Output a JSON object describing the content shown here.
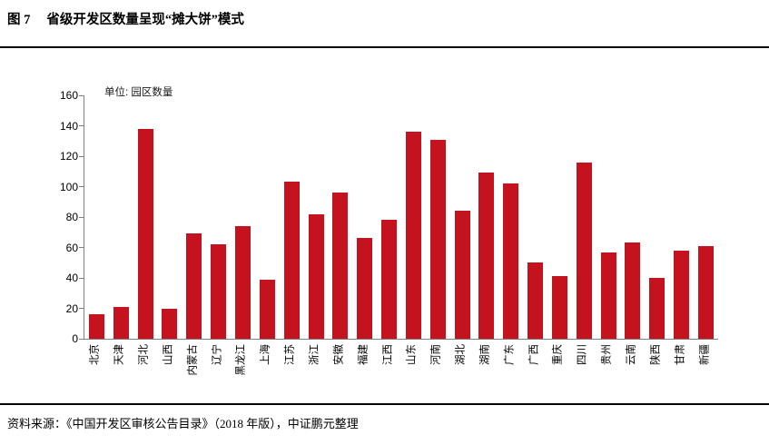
{
  "figure": {
    "label": "图 7",
    "title": "省级开发区数量呈现“摊大饼”模式"
  },
  "chart_data": {
    "type": "bar",
    "title": "省级开发区数量呈现“摊大饼”模式",
    "unit_label": "单位: 园区数量",
    "categories": [
      "北京",
      "天津",
      "河北",
      "山西",
      "内蒙古",
      "辽宁",
      "黑龙江",
      "上海",
      "江苏",
      "浙江",
      "安徽",
      "福建",
      "江西",
      "山东",
      "河南",
      "湖北",
      "湖南",
      "广东",
      "广西",
      "重庆",
      "四川",
      "贵州",
      "云南",
      "陕西",
      "甘肃",
      "新疆"
    ],
    "values": [
      16,
      21,
      138,
      20,
      69,
      62,
      74,
      39,
      103,
      82,
      96,
      66,
      78,
      136,
      131,
      84,
      109,
      102,
      50,
      41,
      116,
      57,
      63,
      40,
      58,
      61
    ],
    "xlabel": "",
    "ylabel": "",
    "ylim": [
      0,
      160
    ],
    "yticks": [
      0,
      20,
      40,
      60,
      80,
      100,
      120,
      140,
      160
    ],
    "grid": "off",
    "legend": "none",
    "bar_color": "#C4121E",
    "axis_color": "#808080"
  },
  "footer": {
    "source": "资料来源：《中国开发区审核公告目录》（2018 年版），中证鹏元整理"
  }
}
